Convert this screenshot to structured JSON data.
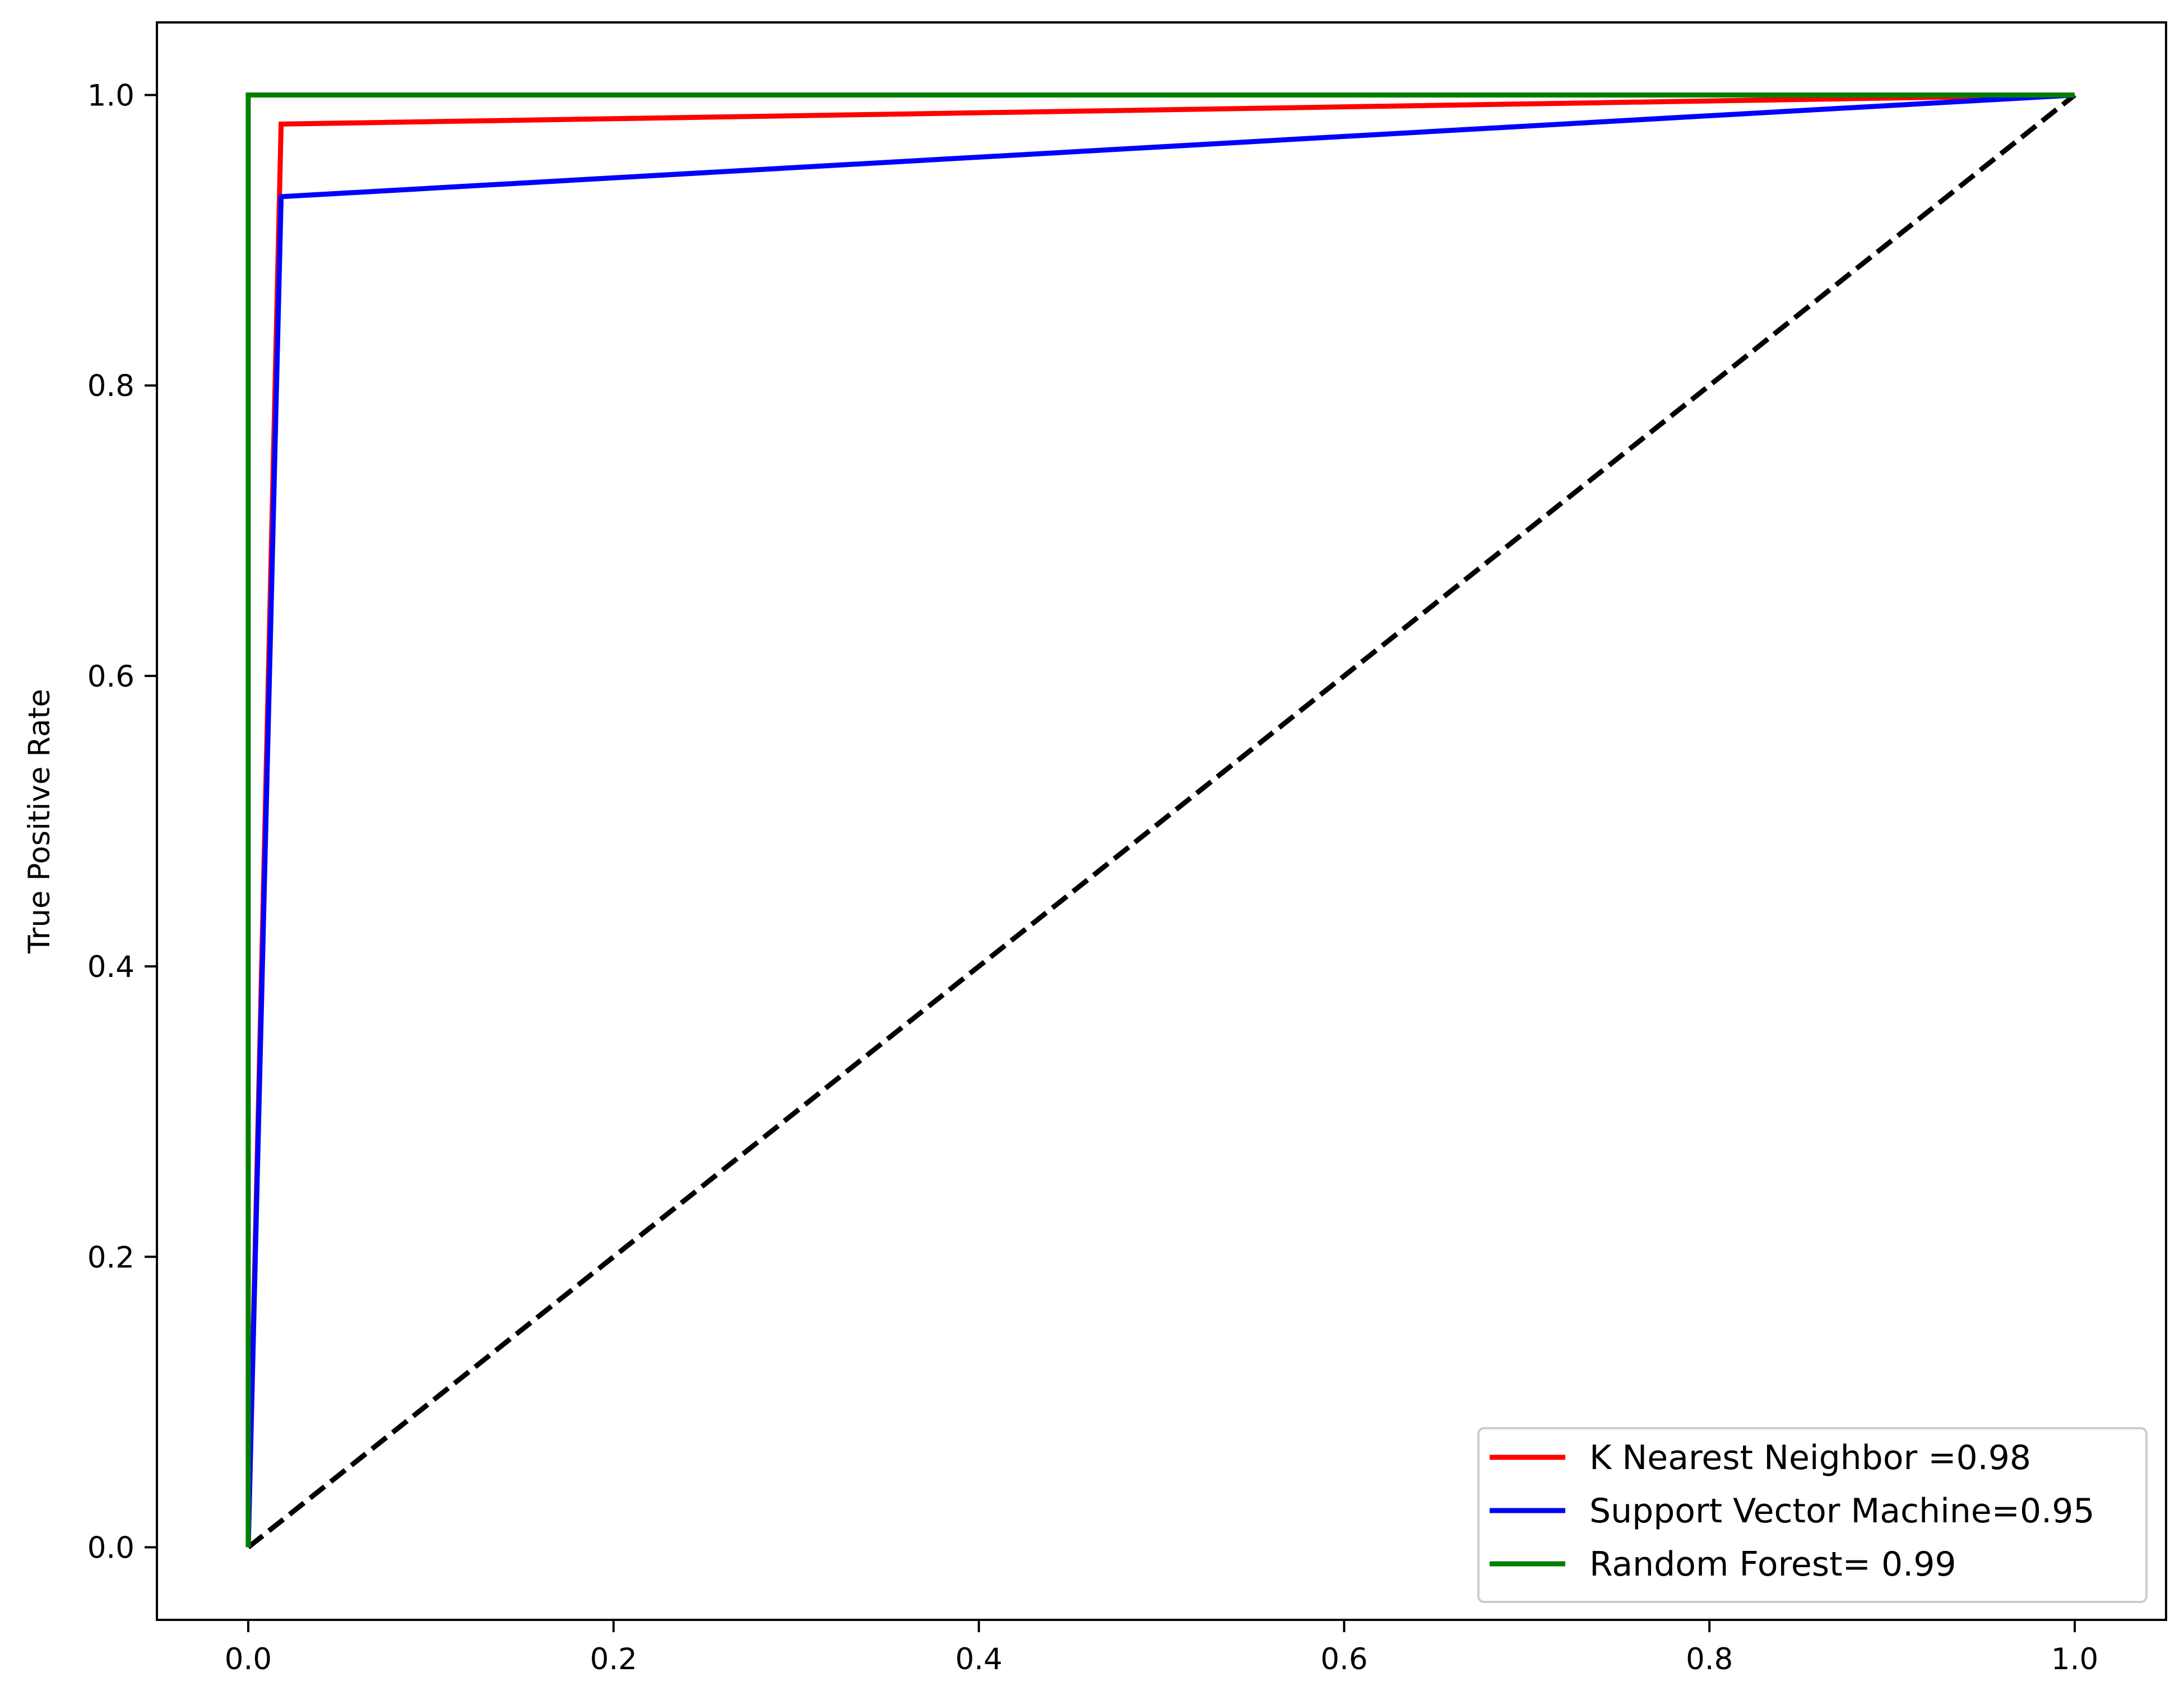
{
  "chart_data": {
    "type": "line",
    "title": "",
    "xlabel": "",
    "ylabel": "True Positive Rate",
    "xlim": [
      -0.05,
      1.05
    ],
    "ylim": [
      -0.05,
      1.05
    ],
    "x_ticks": [
      0.0,
      0.2,
      0.4,
      0.6,
      0.8,
      1.0
    ],
    "x_tick_labels": [
      "0.0",
      "0.2",
      "0.4",
      "0.6",
      "0.8",
      "1.0"
    ],
    "y_ticks": [
      0.0,
      0.2,
      0.4,
      0.6,
      0.8,
      1.0
    ],
    "y_tick_labels": [
      "0.0",
      "0.2",
      "0.4",
      "0.6",
      "0.8",
      "1.0"
    ],
    "grid": false,
    "legend_position": "lower right",
    "series": [
      {
        "name": "K Nearest Neighbor =0.98",
        "color": "#ff0000",
        "x": [
          0.0,
          0.018,
          1.0
        ],
        "y": [
          0.0,
          0.98,
          1.0
        ]
      },
      {
        "name": "Support Vector Machine=0.95",
        "color": "#0000ff",
        "x": [
          0.0,
          0.018,
          1.0
        ],
        "y": [
          0.0,
          0.93,
          1.0
        ]
      },
      {
        "name": "Random Forest= 0.99",
        "color": "#008000",
        "x": [
          0.0,
          0.0,
          1.0
        ],
        "y": [
          0.0,
          1.0,
          1.0
        ]
      }
    ],
    "reference_line": {
      "color": "#000000",
      "style": "dashed",
      "x": [
        0.0,
        1.0
      ],
      "y": [
        0.0,
        1.0
      ]
    }
  }
}
